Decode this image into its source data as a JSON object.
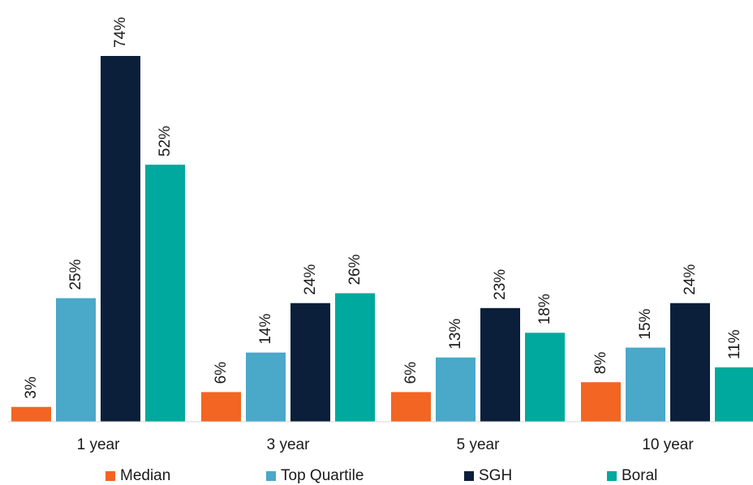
{
  "chart_data": {
    "type": "bar",
    "categories": [
      "1 year",
      "3 year",
      "5 year",
      "10 year"
    ],
    "series": [
      {
        "name": "Median",
        "values": [
          3,
          6,
          6,
          8
        ],
        "labels": [
          "3%",
          "6%",
          "6%",
          "8%"
        ],
        "color": "#F26522"
      },
      {
        "name": "Top Quartile",
        "values": [
          25,
          14,
          13,
          15
        ],
        "labels": [
          "25%",
          "14%",
          "13%",
          "15%"
        ],
        "color": "#4AA8C9"
      },
      {
        "name": "SGH",
        "values": [
          74,
          24,
          23,
          24
        ],
        "labels": [
          "74%",
          "24%",
          "23%",
          "24%"
        ],
        "color": "#0B1F3A"
      },
      {
        "name": "Boral",
        "values": [
          52,
          26,
          18,
          11
        ],
        "labels": [
          "52%",
          "26%",
          "18%",
          "11%"
        ],
        "color": "#00A99D"
      }
    ],
    "title": "",
    "xlabel": "",
    "ylabel": "",
    "ylim": [
      0,
      74
    ],
    "grid": false,
    "legend_position": "bottom"
  }
}
